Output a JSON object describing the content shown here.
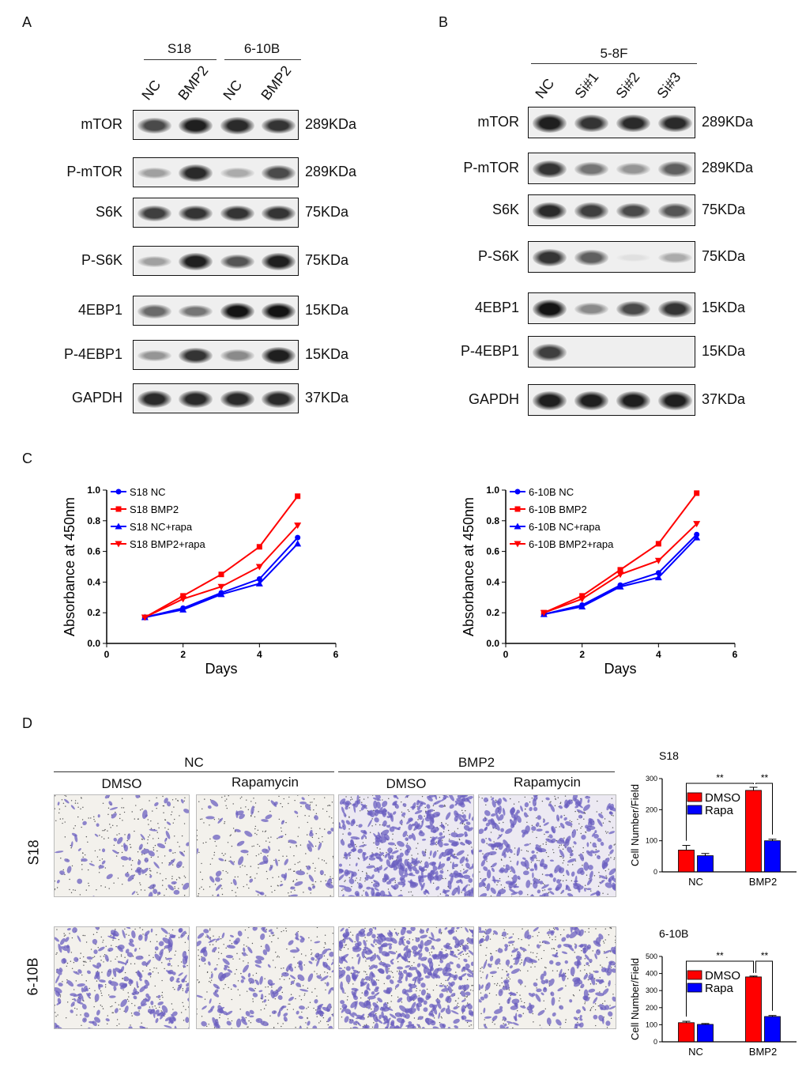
{
  "panel_labels": {
    "a": "A",
    "b": "B",
    "c": "C",
    "d": "D"
  },
  "panel_a": {
    "groups": [
      "S18",
      "6-10B"
    ],
    "lanes": [
      "NC",
      "BMP2",
      "NC",
      "BMP2"
    ],
    "blots": [
      {
        "protein": "mTOR",
        "size": "289KDa",
        "intensity": [
          0.75,
          0.95,
          0.9,
          0.85
        ]
      },
      {
        "protein": "P-mTOR",
        "size": "289KDa",
        "intensity": [
          0.35,
          0.9,
          0.3,
          0.75
        ]
      },
      {
        "protein": "S6K",
        "size": "75KDa",
        "intensity": [
          0.8,
          0.85,
          0.85,
          0.85
        ]
      },
      {
        "protein": "P-S6K",
        "size": "75KDa",
        "intensity": [
          0.35,
          0.95,
          0.7,
          0.95
        ]
      },
      {
        "protein": "4EBP1",
        "size": "15KDa",
        "intensity": [
          0.6,
          0.55,
          1.0,
          1.0
        ]
      },
      {
        "protein": "P-4EBP1",
        "size": "15KDa",
        "intensity": [
          0.4,
          0.85,
          0.45,
          0.95
        ]
      },
      {
        "protein": "GAPDH",
        "size": "37KDa",
        "intensity": [
          0.9,
          0.9,
          0.9,
          0.9
        ]
      }
    ]
  },
  "panel_b": {
    "group": "5-8F",
    "lanes": [
      "NC",
      "Si#1",
      "Si#2",
      "Si#3"
    ],
    "blots": [
      {
        "protein": "mTOR",
        "size": "289KDa",
        "intensity": [
          0.95,
          0.85,
          0.9,
          0.9
        ]
      },
      {
        "protein": "P-mTOR",
        "size": "289KDa",
        "intensity": [
          0.85,
          0.55,
          0.4,
          0.65
        ]
      },
      {
        "protein": "S6K",
        "size": "75KDa",
        "intensity": [
          0.9,
          0.8,
          0.75,
          0.7
        ]
      },
      {
        "protein": "P-S6K",
        "size": "75KDa",
        "intensity": [
          0.85,
          0.65,
          0.05,
          0.3
        ]
      },
      {
        "protein": "4EBP1",
        "size": "15KDa",
        "intensity": [
          1.0,
          0.45,
          0.75,
          0.85
        ]
      },
      {
        "protein": "P-4EBP1",
        "size": "15KDa",
        "intensity": [
          0.8,
          0.0,
          0.0,
          0.0
        ]
      },
      {
        "protein": "GAPDH",
        "size": "37KDa",
        "intensity": [
          0.95,
          0.95,
          0.95,
          0.95
        ]
      }
    ]
  },
  "chart_data": [
    {
      "type": "line",
      "xlabel": "Days",
      "ylabel": "Absorbance at 450nm",
      "xlim": [
        0,
        6
      ],
      "ylim": [
        0,
        1.0
      ],
      "xticks": [
        "0",
        "2",
        "4",
        "6"
      ],
      "yticks": [
        "0.0",
        "0.2",
        "0.4",
        "0.6",
        "0.8",
        "1.0"
      ],
      "x": [
        1,
        2,
        3,
        4,
        5
      ],
      "series": [
        {
          "name": "S18 NC",
          "marker": "circle",
          "color": "#0000ff",
          "values": [
            0.17,
            0.23,
            0.33,
            0.42,
            0.69
          ]
        },
        {
          "name": "S18 BMP2",
          "marker": "square",
          "color": "#ff0000",
          "values": [
            0.17,
            0.31,
            0.45,
            0.63,
            0.96
          ]
        },
        {
          "name": "S18 NC+rapa",
          "marker": "triangle-up",
          "color": "#0000ff",
          "values": [
            0.17,
            0.22,
            0.32,
            0.39,
            0.65
          ]
        },
        {
          "name": "S18 BMP2+rapa",
          "marker": "triangle-down",
          "color": "#ff0000",
          "values": [
            0.17,
            0.29,
            0.37,
            0.5,
            0.77
          ]
        }
      ]
    },
    {
      "type": "line",
      "xlabel": "Days",
      "ylabel": "Absorbance at 450nm",
      "xlim": [
        0,
        6
      ],
      "ylim": [
        0,
        1.0
      ],
      "xticks": [
        "0",
        "2",
        "4",
        "6"
      ],
      "yticks": [
        "0.0",
        "0.2",
        "0.4",
        "0.6",
        "0.8",
        "1.0"
      ],
      "x": [
        1,
        2,
        3,
        4,
        5
      ],
      "series": [
        {
          "name": "6-10B NC",
          "marker": "circle",
          "color": "#0000ff",
          "values": [
            0.19,
            0.25,
            0.38,
            0.46,
            0.71
          ]
        },
        {
          "name": "6-10B BMP2",
          "marker": "square",
          "color": "#ff0000",
          "values": [
            0.2,
            0.31,
            0.48,
            0.65,
            0.98
          ]
        },
        {
          "name": "6-10B NC+rapa",
          "marker": "triangle-up",
          "color": "#0000ff",
          "values": [
            0.19,
            0.24,
            0.37,
            0.43,
            0.69
          ]
        },
        {
          "name": "6-10B BMP2+rapa",
          "marker": "triangle-down",
          "color": "#ff0000",
          "values": [
            0.2,
            0.29,
            0.45,
            0.54,
            0.78
          ]
        }
      ]
    },
    {
      "type": "bar",
      "title": "S18",
      "ylabel": "Cell Number/Field",
      "categories": [
        "NC",
        "BMP2"
      ],
      "ylim": [
        0,
        300
      ],
      "yticks": [
        "0",
        "100",
        "200",
        "300"
      ],
      "series": [
        {
          "name": "DMSO",
          "color": "#ff0000",
          "values": [
            70,
            262
          ],
          "errors": [
            15,
            10
          ]
        },
        {
          "name": "Rapa",
          "color": "#0000ff",
          "values": [
            52,
            100
          ],
          "errors": [
            7,
            5
          ]
        }
      ],
      "annotations": [
        "**",
        "**"
      ]
    },
    {
      "type": "bar",
      "title": "6-10B",
      "ylabel": "Cell Number/Field",
      "categories": [
        "NC",
        "BMP2"
      ],
      "ylim": [
        0,
        500
      ],
      "yticks": [
        "0",
        "100",
        "200",
        "300",
        "400",
        "500"
      ],
      "series": [
        {
          "name": "DMSO",
          "color": "#ff0000",
          "values": [
            112,
            380
          ],
          "errors": [
            8,
            5
          ]
        },
        {
          "name": "Rapa",
          "color": "#0000ff",
          "values": [
            102,
            148
          ],
          "errors": [
            5,
            6
          ]
        }
      ],
      "annotations": [
        "**",
        "**"
      ]
    }
  ],
  "panel_d": {
    "groups": [
      "NC",
      "BMP2"
    ],
    "columns": [
      "DMSO",
      "Rapamycin",
      "DMSO",
      "Rapamycin"
    ],
    "rows": [
      "S18",
      "6-10B"
    ],
    "density": [
      [
        0.15,
        0.12,
        0.9,
        0.6
      ],
      [
        0.45,
        0.35,
        0.95,
        0.45
      ]
    ]
  }
}
